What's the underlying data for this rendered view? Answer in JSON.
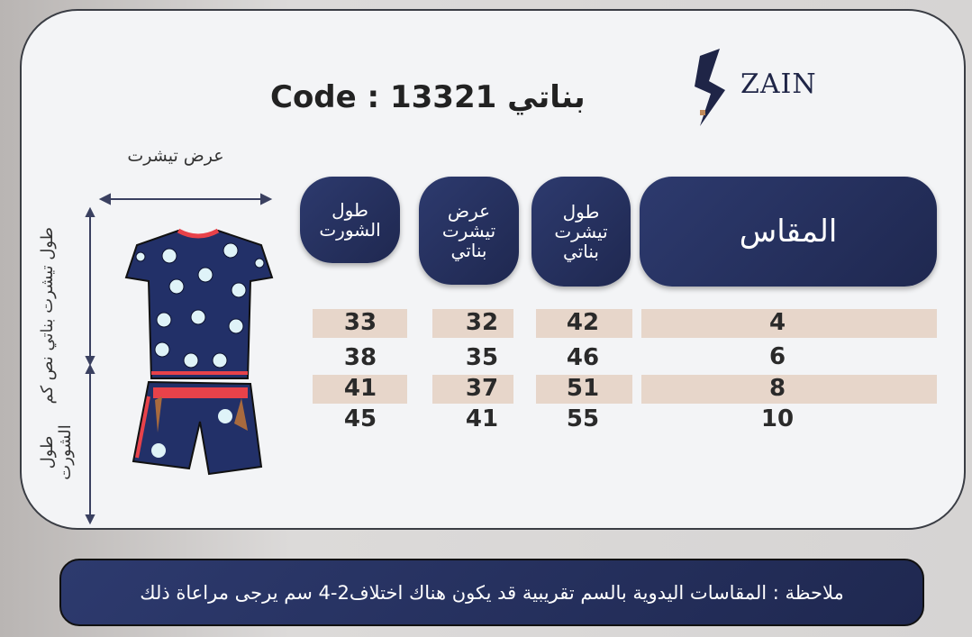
{
  "brand": {
    "logo_text": "ZAIN"
  },
  "title": "Code : 13321 بناتي",
  "diagram": {
    "width_label": "عرض تيشرت",
    "tshirt_length_label": "طول تيشرت بناتي نص كم",
    "short_length_label": "طول الشورت"
  },
  "table": {
    "headers": [
      "المقاس",
      "طول تيشرت بناتي",
      "عرض تيشرت بناتي",
      "طول الشورت"
    ],
    "rows": [
      [
        "4",
        "42",
        "32",
        "33"
      ],
      [
        "6",
        "46",
        "35",
        "38"
      ],
      [
        "8",
        "51",
        "37",
        "41"
      ],
      [
        "10",
        "55",
        "41",
        "45"
      ]
    ]
  },
  "note": "ملاحظة : المقاسات اليدوية بالسم تقريبية قد يكون هناك اختلاف2-4 سم يرجى مراعاة ذلك",
  "colors": {
    "navy": "#1f2850",
    "band": "#e7d6ca",
    "accent_red": "#e8424a"
  }
}
